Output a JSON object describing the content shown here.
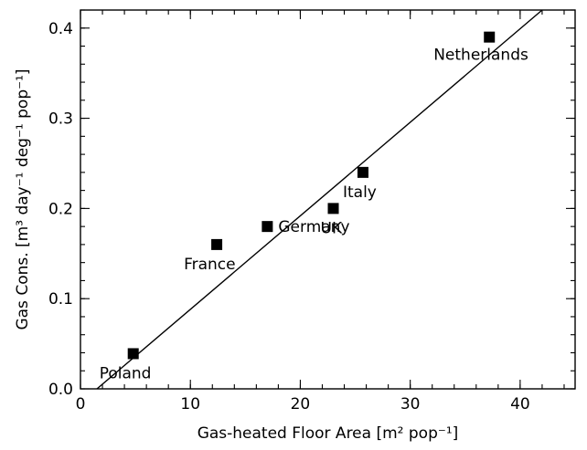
{
  "chart_data": {
    "type": "scatter",
    "title": "",
    "xlabel_main": "Gas-heated Floor Area ",
    "xlabel_unit": "[m² pop⁻¹]",
    "ylabel_main": "Gas Cons. ",
    "ylabel_unit": "[m³ day⁻¹ deg⁻¹ pop⁻¹]",
    "xlim": [
      0,
      45
    ],
    "ylim": [
      0,
      0.42
    ],
    "x_ticks": [
      0,
      10,
      20,
      30,
      40
    ],
    "x_tick_labels": [
      "0",
      "10",
      "20",
      "30",
      "40"
    ],
    "y_ticks": [
      0,
      0.1,
      0.2,
      0.3,
      0.4
    ],
    "y_tick_labels": [
      "0.0",
      "0.1",
      "0.2",
      "0.3",
      "0.4"
    ],
    "grid": false,
    "legend": "none",
    "points": [
      {
        "label": "Poland",
        "x": 4.8,
        "y": 0.039
      },
      {
        "label": "France",
        "x": 12.4,
        "y": 0.16
      },
      {
        "label": "Germany",
        "x": 17.0,
        "y": 0.18
      },
      {
        "label": "UK",
        "x": 23.0,
        "y": 0.2
      },
      {
        "label": "Italy",
        "x": 25.7,
        "y": 0.24
      },
      {
        "label": "Netherlands",
        "x": 37.2,
        "y": 0.39
      }
    ],
    "fit_line": {
      "x": [
        1.5,
        42.0
      ],
      "y": [
        0.0,
        0.42
      ]
    }
  }
}
